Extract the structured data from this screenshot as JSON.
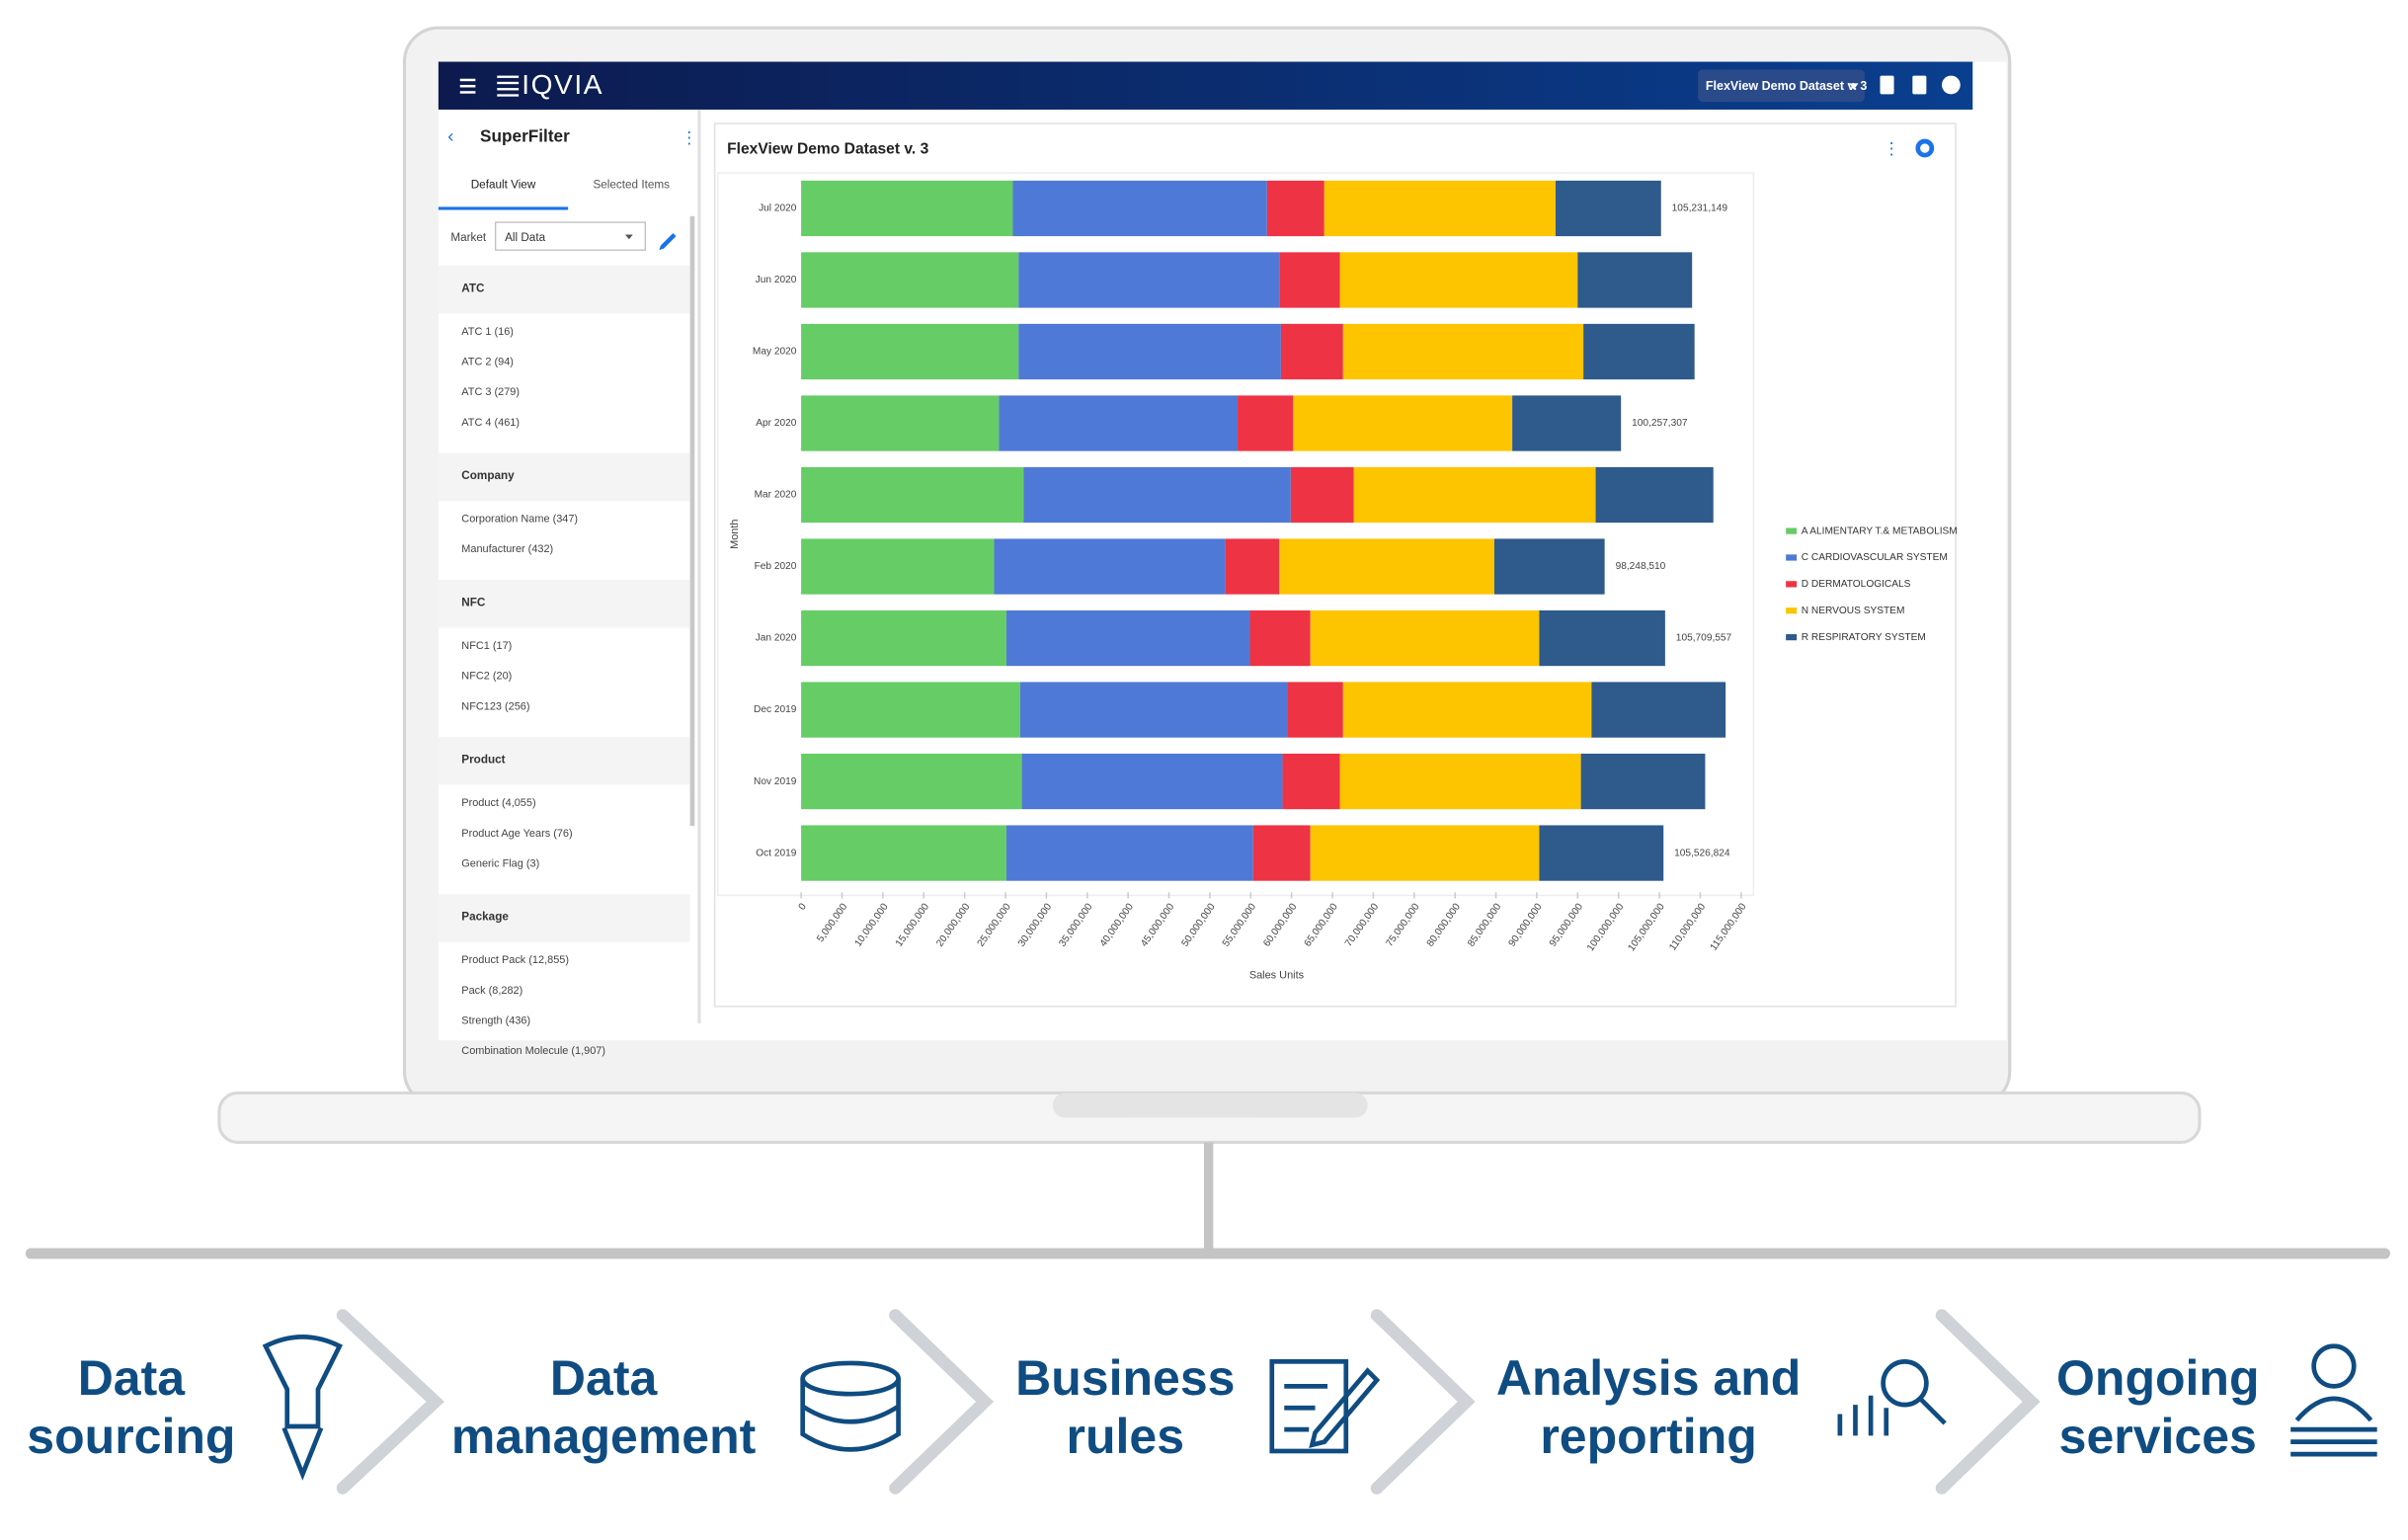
{
  "header": {
    "logo": "IQVIA",
    "dataset": "FlexView Demo Dataset v. 3"
  },
  "sidebar": {
    "title": "SuperFilter",
    "tabs": [
      "Default View",
      "Selected Items"
    ],
    "market_label": "Market",
    "market_value": "All Data",
    "sections": [
      {
        "title": "ATC",
        "items": [
          "ATC 1 (16)",
          "ATC 2 (94)",
          "ATC 3 (279)",
          "ATC 4 (461)"
        ]
      },
      {
        "title": "Company",
        "items": [
          "Corporation Name (347)",
          "Manufacturer (432)"
        ]
      },
      {
        "title": "NFC",
        "items": [
          "NFC1 (17)",
          "NFC2 (20)",
          "NFC123 (256)"
        ]
      },
      {
        "title": "Product",
        "items": [
          "Product (4,055)",
          "Product Age Years (76)",
          "Generic Flag (3)"
        ]
      },
      {
        "title": "Package",
        "items": [
          "Product Pack (12,855)",
          "Pack (8,282)",
          "Strength (436)",
          "Combination Molecule (1,907)"
        ]
      }
    ]
  },
  "chart_data": {
    "type": "stacked_barh",
    "title": "FlexView Demo Dataset v. 3",
    "ylabel": "Month",
    "xlabel": "Sales Units",
    "categories": [
      "Jul 2020",
      "Jun 2020",
      "May 2020",
      "Apr 2020",
      "Mar 2020",
      "Feb 2020",
      "Jan 2020",
      "Dec 2019",
      "Nov 2019",
      "Oct 2019"
    ],
    "series": [
      {
        "name": "A ALIMENTARY T.& METABOLISM",
        "color": "#66cc66",
        "values": [
          25900000,
          26600000,
          26600000,
          24200000,
          27200000,
          23600000,
          25100000,
          26800000,
          27000000,
          25100000
        ]
      },
      {
        "name": "C CARDIOVASCULAR SYSTEM",
        "color": "#4f79d6",
        "values": [
          31100000,
          31900000,
          32100000,
          29200000,
          32700000,
          28300000,
          29800000,
          32700000,
          31900000,
          30200000
        ]
      },
      {
        "name": "D DERMATOLOGICALS",
        "color": "#ee3344",
        "values": [
          7000000,
          7400000,
          7600000,
          6800000,
          7700000,
          6600000,
          7400000,
          6800000,
          7000000,
          7000000
        ]
      },
      {
        "name": "N NERVOUS SYSTEM",
        "color": "#fdc400",
        "values": [
          28300000,
          29100000,
          29400000,
          26800000,
          29600000,
          26300000,
          28000000,
          30400000,
          29500000,
          28000000
        ]
      },
      {
        "name": "R RESPIRATORY SYSTEM",
        "color": "#2e5a8c",
        "values": [
          12900000,
          14000000,
          13600000,
          13300000,
          14400000,
          13500000,
          15400000,
          16400000,
          15200000,
          15200000
        ]
      }
    ],
    "total_labels": [
      "105,231,149",
      null,
      null,
      "100,257,307",
      null,
      "98,248,510",
      "105,709,557",
      null,
      null,
      "105,526,824"
    ],
    "xlim": [
      0,
      115000000
    ],
    "xticks": [
      0,
      {
        "value": 5000000,
        "label": "5,000,000"
      },
      {
        "value": 10000000,
        "label": "10,000,000"
      },
      {
        "value": 15000000,
        "label": "15,000,000"
      },
      {
        "value": 20000000,
        "label": "20,000,000"
      },
      {
        "value": 25000000,
        "label": "25,000,000"
      },
      {
        "value": 30000000,
        "label": "30,000,000"
      },
      {
        "value": 35000000,
        "label": "35,000,000"
      },
      {
        "value": 40000000,
        "label": "40,000,000"
      },
      {
        "value": 45000000,
        "label": "45,000,000"
      },
      {
        "value": 50000000,
        "label": "50,000,000"
      },
      {
        "value": 55000000,
        "label": "55,000,000"
      },
      {
        "value": 60000000,
        "label": "60,000,000"
      },
      {
        "value": 65000000,
        "label": "65,000,000"
      },
      {
        "value": 70000000,
        "label": "70,000,000"
      },
      {
        "value": 75000000,
        "label": "75,000,000"
      },
      {
        "value": 80000000,
        "label": "80,000,000"
      },
      {
        "value": 85000000,
        "label": "85,000,000"
      },
      {
        "value": 90000000,
        "label": "90,000,000"
      },
      {
        "value": 95000000,
        "label": "95,000,000"
      },
      {
        "value": 100000000,
        "label": "100,000,000"
      },
      {
        "value": 105000000,
        "label": "105,000,000"
      },
      {
        "value": 110000000,
        "label": "110,000,000"
      },
      {
        "value": 115000000,
        "label": "115,000,000"
      }
    ],
    "legend": "right"
  },
  "steps": [
    {
      "lines": [
        "Data",
        "sourcing"
      ]
    },
    {
      "lines": [
        "Data",
        "management"
      ]
    },
    {
      "lines": [
        "Business",
        "rules"
      ]
    },
    {
      "lines": [
        "Analysis and",
        "reporting"
      ]
    },
    {
      "lines": [
        "Ongoing",
        "services"
      ]
    }
  ]
}
